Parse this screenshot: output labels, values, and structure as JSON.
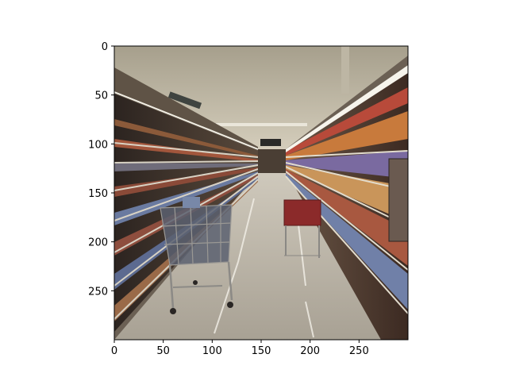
{
  "image": {
    "subject": "supermarket aisle with shopping carts",
    "palette": {
      "ceiling": "#c9c2b0",
      "floor": "#b4ad9f",
      "shelf_shadow": "#3a2f28",
      "light_strip": "#f4f1e6",
      "cart_metal": "#8f8d8a",
      "red_basket": "#8b2a2a"
    }
  },
  "axes": {
    "x_ticks": [
      "0",
      "50",
      "100",
      "150",
      "200",
      "250"
    ],
    "y_ticks": [
      "0",
      "50",
      "100",
      "150",
      "200",
      "250"
    ],
    "x_range": [
      0,
      300
    ],
    "y_range": [
      0,
      300
    ]
  }
}
